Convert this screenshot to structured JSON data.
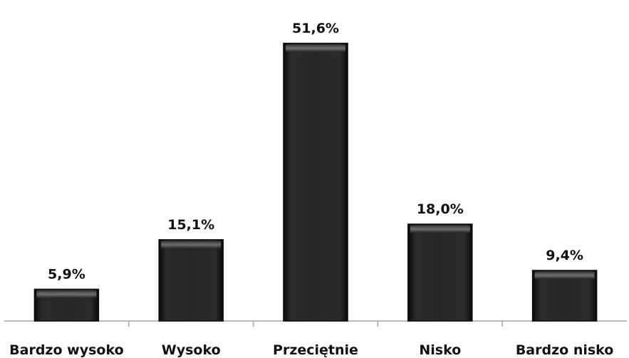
{
  "chart_data": {
    "type": "bar",
    "categories": [
      "Bardzo wysoko",
      "Wysoko",
      "Przeciętnie",
      "Nisko",
      "Bardzo nisko"
    ],
    "values": [
      5.9,
      15.1,
      51.6,
      18.0,
      9.4
    ],
    "value_labels": [
      "5,9%",
      "15,1%",
      "51,6%",
      "18,0%",
      "9,4%"
    ],
    "ylim": [
      0,
      57
    ],
    "grid": false,
    "legend": "none",
    "colors": {
      "bar_fill": "#262626",
      "bar_edge": "#0d0d0d",
      "bar_highlight": "#6a6a6a",
      "axis": "#a6a6a6",
      "text": "#111111"
    }
  }
}
